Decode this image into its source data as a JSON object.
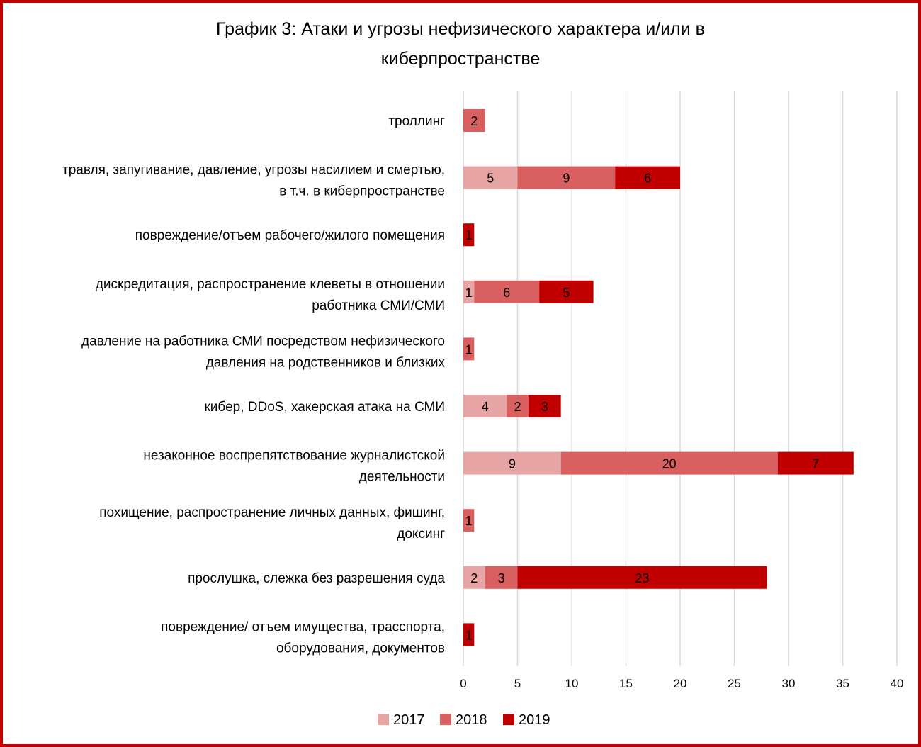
{
  "chart_data": {
    "type": "bar",
    "orientation": "horizontal",
    "stacked": true,
    "title_line1": "График 3: Атаки и угрозы нефизического характера и/или в",
    "title_line2": "киберпространстве",
    "xlim": [
      0,
      40
    ],
    "x_ticks": [
      0,
      5,
      10,
      15,
      20,
      25,
      30,
      35,
      40
    ],
    "grid": true,
    "legend_position": "bottom",
    "categories": [
      [
        "троллинг"
      ],
      [
        "травля, запугивание, давление, угрозы насилием и смертью,",
        "в т.ч. в киберпространстве"
      ],
      [
        "повреждение/отъем рабочего/жилого помещения"
      ],
      [
        "дискредитация, распространение клеветы в отношении",
        "работника СМИ/СМИ"
      ],
      [
        "давление на работника СМИ посредством нефизического",
        "давления на родственников и близких"
      ],
      [
        "кибер, DDoS, хакерская атака на СМИ"
      ],
      [
        "незаконное воспрепятствование журналистской",
        "деятельности"
      ],
      [
        "похищение, распространение личных данных, фишинг,",
        "доксинг"
      ],
      [
        "прослушка, слежка без разрешения суда"
      ],
      [
        "повреждение/ отъем имущества, трасспорта,",
        "оборудования, документов"
      ]
    ],
    "series": [
      {
        "name": "2017",
        "color": "#e8a5a5",
        "values": [
          0,
          5,
          0,
          1,
          0,
          4,
          9,
          0,
          2,
          0
        ]
      },
      {
        "name": "2018",
        "color": "#d96060",
        "values": [
          2,
          9,
          0,
          6,
          1,
          2,
          20,
          1,
          3,
          0
        ]
      },
      {
        "name": "2019",
        "color": "#c00000",
        "values": [
          0,
          6,
          1,
          5,
          0,
          3,
          7,
          0,
          23,
          1
        ]
      }
    ]
  }
}
